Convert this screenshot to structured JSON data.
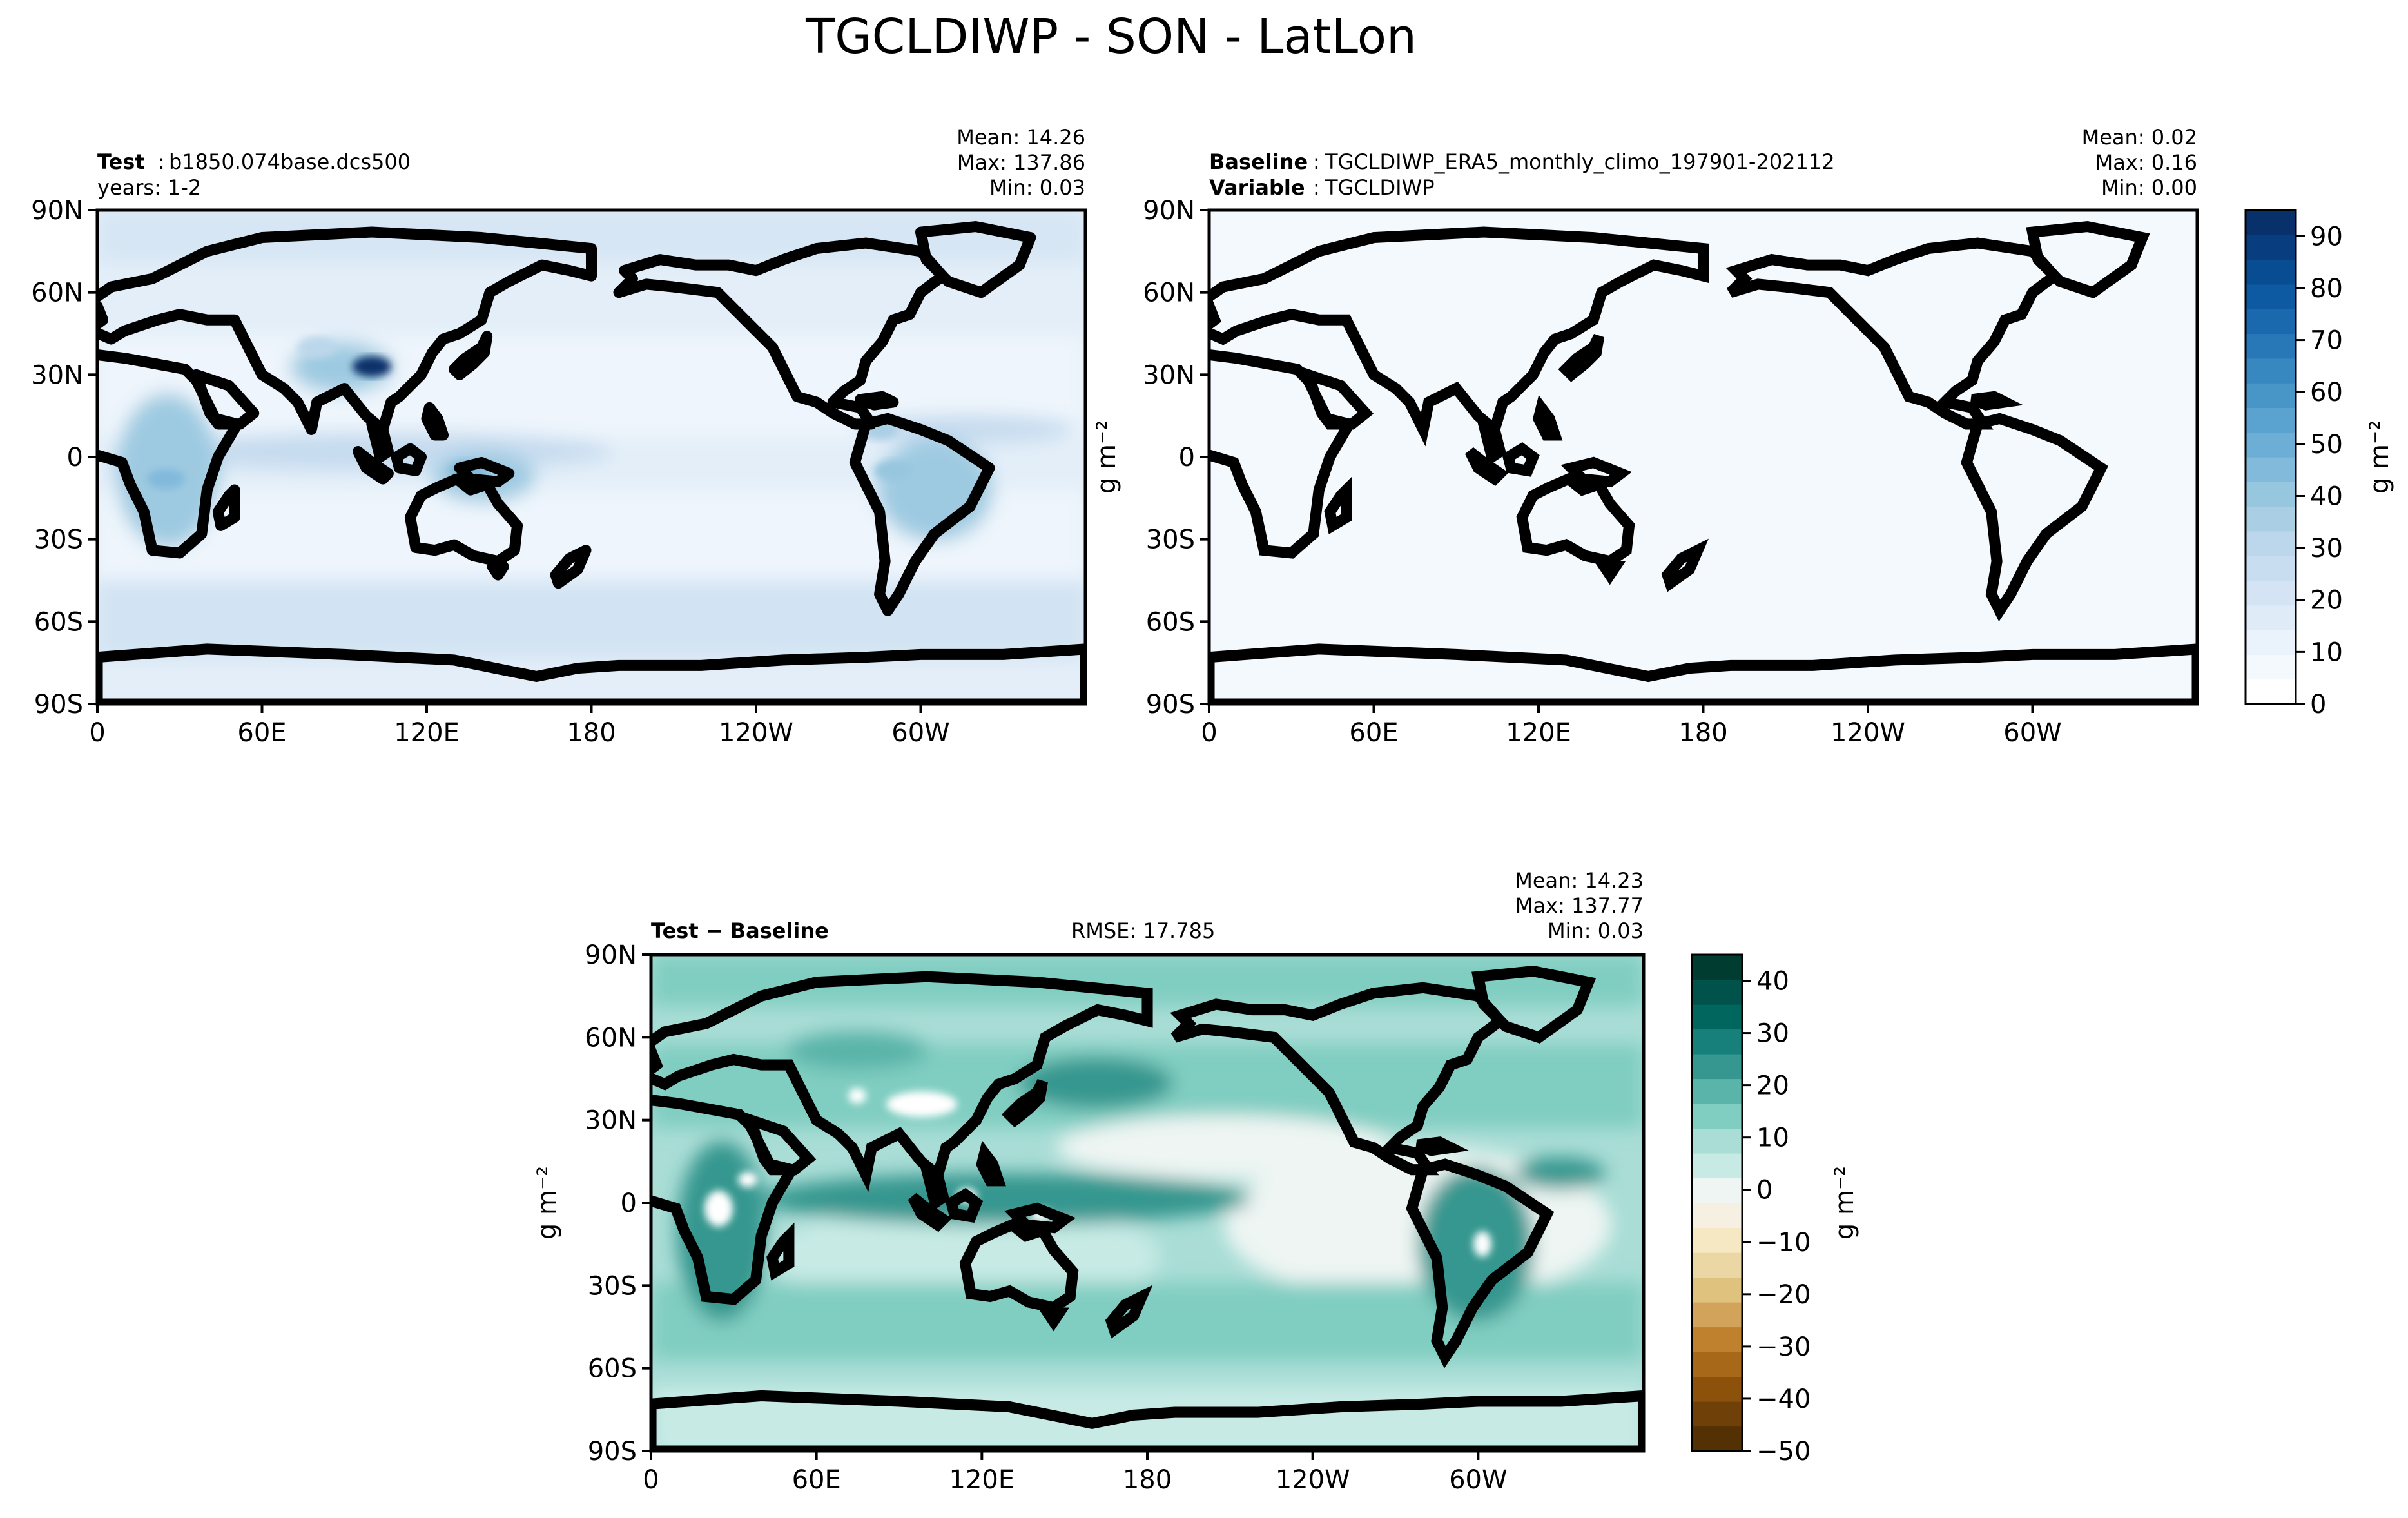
{
  "figure": {
    "title": "TGCLDIWP - SON - LatLon"
  },
  "chart_data": [
    {
      "type": "heatmap",
      "panel": "test",
      "label_bold": "Test",
      "label_sep": ":",
      "label_text": "b1850.074base.dcs500",
      "subtitle": "years: 1-2",
      "stats": [
        "Mean: 14.26",
        "Max: 137.86",
        "Min:  0.03"
      ],
      "xticks": [
        "0",
        "60E",
        "120E",
        "180",
        "120W",
        "60W"
      ],
      "yticks": [
        "90N",
        "60N",
        "30N",
        "0",
        "30S",
        "60S",
        "90S"
      ],
      "xlim": [
        0,
        360
      ],
      "ylim": [
        -90,
        90
      ],
      "colormap": "Blues",
      "anomalies": [
        {
          "lon": 100,
          "lat": 33,
          "value": 95
        },
        {
          "lon": 25,
          "lat": -8,
          "value": 45
        },
        {
          "lon": 135,
          "lat": -5,
          "value": 45
        },
        {
          "lon": 290,
          "lat": -5,
          "value": 40
        },
        {
          "lon": 285,
          "lat": 10,
          "value": 35
        },
        {
          "lon": 80,
          "lat": 40,
          "value": 30
        }
      ]
    },
    {
      "type": "heatmap",
      "panel": "baseline",
      "label_bold": "Baseline",
      "label_sep": ":",
      "label_text": "TGCLDIWP_ERA5_monthly_climo_197901-202112",
      "label2_bold": "Variable",
      "label2_sep": ":",
      "label2_text": "TGCLDIWP",
      "stats": [
        "Mean:  0.02",
        "Max:  0.16",
        "Min:  0.00"
      ],
      "xticks": [
        "0",
        "60E",
        "120E",
        "180",
        "120W",
        "60W"
      ],
      "yticks": [
        "90N",
        "60N",
        "30N",
        "0",
        "30S",
        "60S",
        "90S"
      ],
      "ylabel": "g m⁻²",
      "colorbar": {
        "label": "g m⁻²",
        "ticks": [
          "0",
          "10",
          "20",
          "30",
          "40",
          "50",
          "60",
          "70",
          "80",
          "90"
        ],
        "range": [
          0,
          95
        ],
        "colors": [
          "#ffffff",
          "#f4f9fe",
          "#eaf2fb",
          "#dfebf7",
          "#d4e4f4",
          "#c9ddf0",
          "#bcd7eb",
          "#aacfe5",
          "#97c6df",
          "#82badb",
          "#6caed6",
          "#5aa2cf",
          "#4895c8",
          "#3787c0",
          "#2878b8",
          "#1a69ae",
          "#0e5aa2",
          "#084c91",
          "#083d7f",
          "#08306b"
        ]
      }
    },
    {
      "type": "heatmap",
      "panel": "difference",
      "label_bold": "Test − Baseline",
      "rmse": "RMSE: 17.785",
      "stats": [
        "Mean: 14.23",
        "Max: 137.77",
        "Min:  0.03"
      ],
      "xticks": [
        "0",
        "60E",
        "120E",
        "180",
        "120W",
        "60W"
      ],
      "yticks": [
        "90N",
        "60N",
        "30N",
        "0",
        "30S",
        "60S",
        "90S"
      ],
      "ylabel": "g m⁻²",
      "colorbar": {
        "label": "g m⁻²",
        "ticks": [
          "40",
          "30",
          "20",
          "10",
          "0",
          "−10",
          "−20",
          "−30",
          "−40",
          "−50"
        ],
        "tick_values": [
          40,
          30,
          20,
          10,
          0,
          -10,
          -20,
          -30,
          -40,
          -50
        ],
        "range": [
          -50,
          45
        ],
        "colors": [
          "#543005",
          "#6f4109",
          "#8c510a",
          "#a8681a",
          "#bf812d",
          "#d2a35a",
          "#dfc27d",
          "#ebd7a3",
          "#f6e8c3",
          "#f5f0e1",
          "#eef5f3",
          "#c7eae5",
          "#a9ddd6",
          "#80cdc1",
          "#5ab4a9",
          "#35978f",
          "#18807a",
          "#01665e",
          "#00524a",
          "#003c30"
        ]
      }
    }
  ]
}
